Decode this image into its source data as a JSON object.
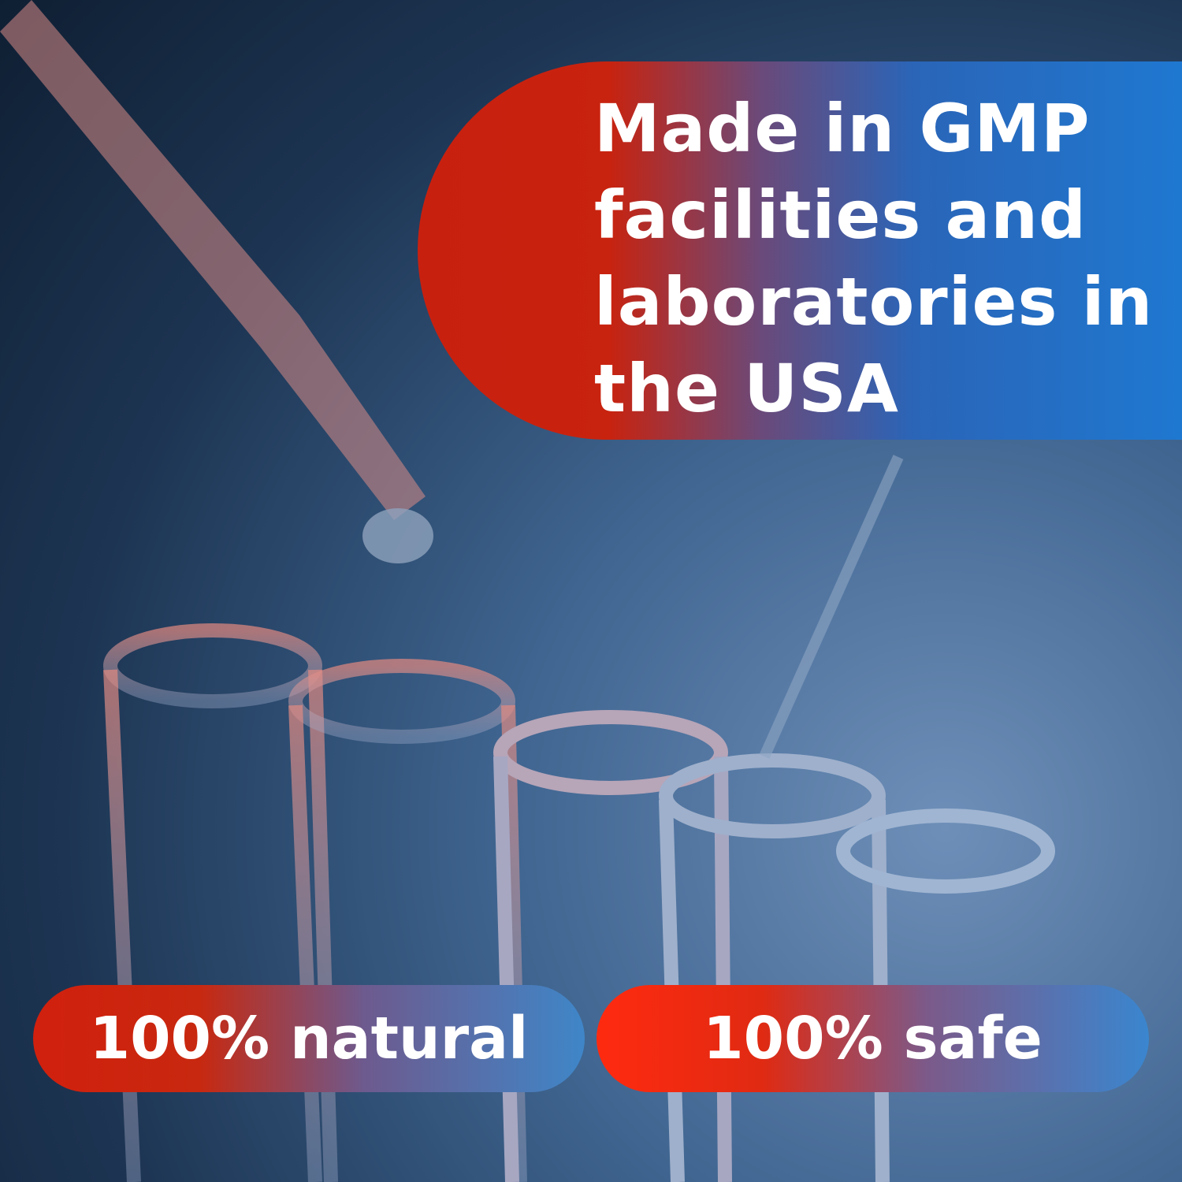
{
  "banner": {
    "lines": [
      "Made in GMP",
      "facilities and",
      "laboratories in",
      "the USA"
    ]
  },
  "badges": [
    {
      "label": "100% natural"
    },
    {
      "label": "100% safe"
    }
  ],
  "colors": {
    "red": "#c8200f",
    "blue": "#1f78d0",
    "background": "#1d3553"
  }
}
